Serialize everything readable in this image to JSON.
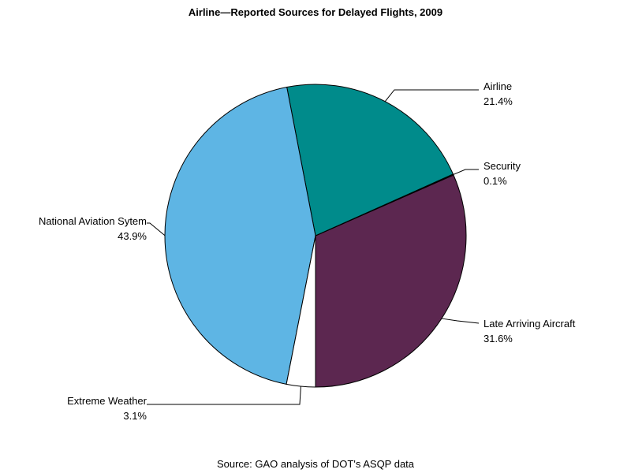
{
  "chart_data": {
    "type": "pie",
    "title": "Airline—Reported Sources for Delayed Flights, 2009",
    "source": "Source: GAO analysis of DOT's ASQP data",
    "slices": [
      {
        "label": "Late Arriving Aircraft",
        "value": 31.6,
        "value_label": "31.6%",
        "color": "#5c2750"
      },
      {
        "label": "Security",
        "value": 0.1,
        "value_label": "0.1%",
        "color": "#1a5a6b"
      },
      {
        "label": "Airline",
        "value": 21.4,
        "value_label": "21.4%",
        "color": "#008b8b"
      },
      {
        "label": "National Aviation Sytem",
        "value": 43.9,
        "value_label": "43.9%",
        "color": "#5eb5e4"
      },
      {
        "label": "Extreme Weather",
        "value": 3.1,
        "value_label": "3.1%",
        "color": "#ffffff"
      }
    ],
    "legend": "none"
  }
}
